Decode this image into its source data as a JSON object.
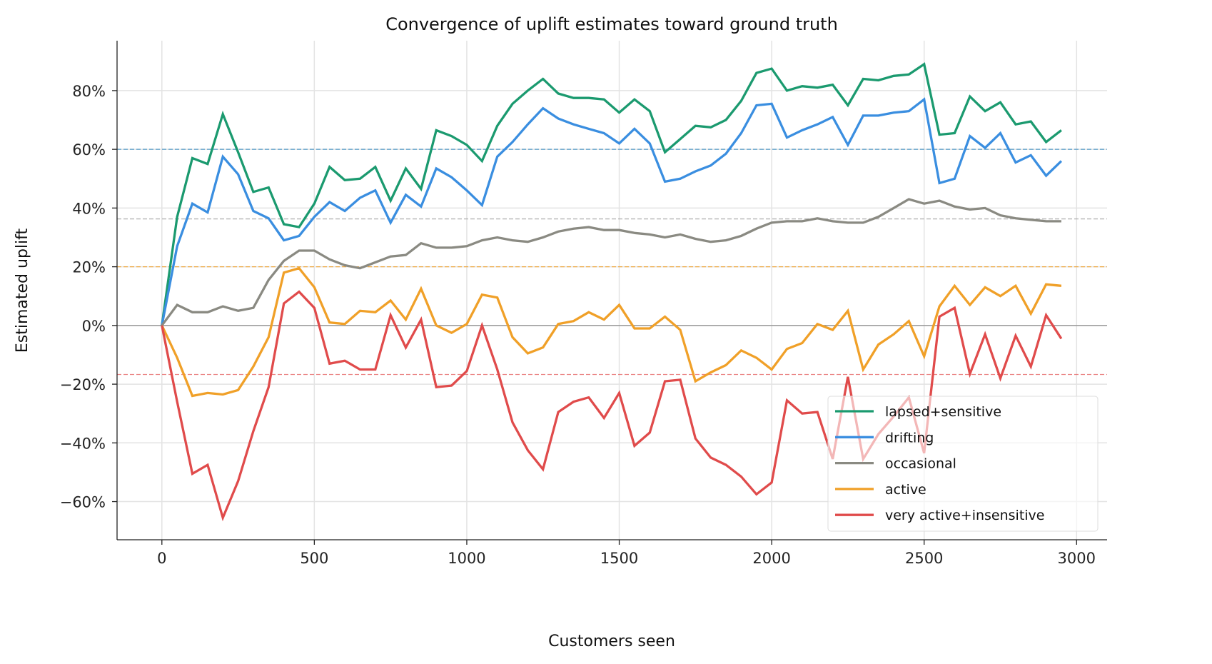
{
  "chart_data": {
    "type": "line",
    "title": "Convergence of uplift estimates toward ground truth",
    "xlabel": "Customers seen",
    "ylabel": "Estimated uplift",
    "xlim": [
      -147,
      3100
    ],
    "ylim": [
      -73,
      97
    ],
    "xticks": [
      0,
      500,
      1000,
      1500,
      2000,
      2500,
      3000
    ],
    "xtick_labels": [
      "0",
      "500",
      "1000",
      "1500",
      "2000",
      "2500",
      "3000"
    ],
    "yticks": [
      -60,
      -40,
      -20,
      0,
      20,
      40,
      60,
      80
    ],
    "ytick_labels": [
      "−60%",
      "−40%",
      "−20%",
      "0%",
      "20%",
      "40%",
      "60%",
      "80%"
    ],
    "grid": true,
    "legend_position": "bottom-right",
    "x_start": 0,
    "x_step": 50,
    "series": [
      {
        "name": "lapsed+sensitive",
        "color": "#1b9a6f",
        "truth": 60,
        "truth_color": "#3d8fc4",
        "values": [
          0,
          37,
          57,
          55,
          72,
          59,
          45.5,
          47,
          34.5,
          33.5,
          41.5,
          54,
          49.5,
          50,
          54,
          42.5,
          53.5,
          46.5,
          66.5,
          64.5,
          61.5,
          56,
          68,
          75.5,
          80,
          84,
          79,
          77.5,
          77.5,
          77,
          72.5,
          77,
          73,
          59,
          63.5,
          68,
          67.5,
          70,
          76.5,
          86,
          87.5,
          80,
          81.5,
          81,
          82,
          75,
          84,
          83.5,
          85,
          85.5,
          89,
          65,
          65.5,
          78,
          73,
          76,
          68.5,
          69.5,
          62.5,
          66.5
        ]
      },
      {
        "name": "drifting",
        "color": "#3a8ee0",
        "truth": null,
        "values": [
          0,
          27,
          41.5,
          38.5,
          57.5,
          51.5,
          39,
          36.5,
          29,
          30.5,
          37,
          42,
          39,
          43.5,
          46,
          35,
          44.5,
          40.5,
          53.5,
          50.5,
          46,
          41,
          57.5,
          62.5,
          68.5,
          74,
          70.5,
          68.5,
          67,
          65.5,
          62,
          67,
          62,
          49,
          50,
          52.5,
          54.5,
          58.5,
          65.5,
          75,
          75.5,
          64,
          66.5,
          68.5,
          71,
          61.5,
          71.5,
          71.5,
          72.5,
          73,
          77,
          48.5,
          50,
          64.5,
          60.5,
          65.5,
          55.5,
          58,
          51,
          56
        ]
      },
      {
        "name": "occasional",
        "color": "#8a8a82",
        "truth": 36.3,
        "truth_color": "#aaaaaa",
        "values": [
          0,
          7,
          4.5,
          4.5,
          6.5,
          5,
          6,
          15.5,
          22,
          25.5,
          25.5,
          22.5,
          20.5,
          19.5,
          21.5,
          23.5,
          24,
          28,
          26.5,
          26.5,
          27,
          29,
          30,
          29,
          28.5,
          30,
          32,
          33,
          33.5,
          32.5,
          32.5,
          31.5,
          31,
          30,
          31,
          29.5,
          28.5,
          29,
          30.5,
          33,
          35,
          35.5,
          35.5,
          36.5,
          35.5,
          35,
          35,
          37,
          40,
          43,
          41.5,
          42.5,
          40.5,
          39.5,
          40,
          37.5,
          36.5,
          36,
          35.5,
          35.5
        ]
      },
      {
        "name": "active",
        "color": "#f0a028",
        "truth": 20,
        "truth_color": "#f0a028",
        "values": [
          0,
          -11,
          -24,
          -23,
          -23.5,
          -22,
          -14,
          -4,
          18,
          19.5,
          13,
          1,
          0.5,
          5,
          4.5,
          8.5,
          2,
          12.5,
          0,
          -2.5,
          0.5,
          10.5,
          9.5,
          -4,
          -9.5,
          -7.5,
          0.5,
          1.5,
          4.5,
          2,
          7,
          -1,
          -1,
          3,
          -1.5,
          -19,
          -16,
          -13.5,
          -8.5,
          -11,
          -15,
          -8,
          -6,
          0.5,
          -1.5,
          5,
          -15,
          -6.5,
          -3,
          1.5,
          -10.5,
          6.5,
          13.5,
          7,
          13,
          10,
          13.5,
          4,
          14,
          13.5
        ]
      },
      {
        "name": "very active+insensitive",
        "color": "#e04b4b",
        "truth": -16.7,
        "truth_color": "#e87070",
        "values": [
          0,
          -26,
          -50.5,
          -47.5,
          -65.5,
          -53,
          -36,
          -21,
          7.5,
          11.5,
          6,
          -13,
          -12,
          -15,
          -15,
          3.5,
          -7.5,
          2,
          -21,
          -20.5,
          -15.5,
          0,
          -15,
          -33,
          -42.5,
          -49,
          -29.5,
          -26,
          -24.5,
          -31.5,
          -23,
          -41,
          -36.5,
          -19,
          -18.5,
          -38.5,
          -45,
          -47.5,
          -51.5,
          -57.5,
          -53.5,
          -25.5,
          -30,
          -29.5,
          -45.5,
          -17.5,
          -45.5,
          -37,
          -31,
          -24.5,
          -43.5,
          3,
          6,
          -16.5,
          -3,
          -18,
          -3.5,
          -14,
          3.5,
          -4.5
        ]
      }
    ]
  }
}
